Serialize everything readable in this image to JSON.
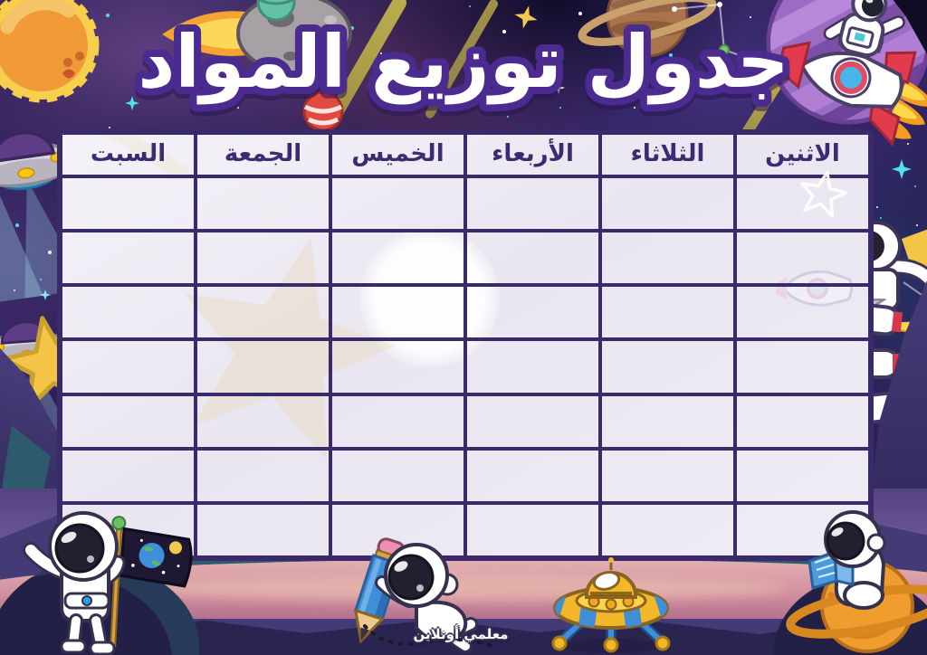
{
  "title": "جدول توزيع المواد",
  "watermark": "معلمي أونلاين",
  "table": {
    "days": [
      "الاثنين",
      "الثلاثاء",
      "الأربعاء",
      "الخميس",
      "الجمعة",
      "السبت"
    ],
    "rows": 7,
    "columns": 6,
    "cells_empty": true
  },
  "colors": {
    "grid_border": "#3a2a6a",
    "header_text": "#3d2b72",
    "cell_background": "#edeaf3",
    "title_fill": "#ffffff",
    "title_outline": "#4b2b8f",
    "space_background": "#241a4e",
    "landscape_pink": "#d08e9f",
    "landscape_purple": "#6b5598",
    "accent_cyan": "#54dff0",
    "accent_gold": "#f3c445"
  },
  "decorations": [
    "sun-icon",
    "meteor-icon",
    "teal-planet-icon",
    "saturn-icon",
    "purple-planet-icon",
    "rocket-astronaut-icon",
    "constellation-icon",
    "ufo-icon",
    "gold-star-icon",
    "white-star-icon",
    "astronaut-peeking-icon",
    "rocket-boosters-icon",
    "astronaut-flag-icon",
    "astronaut-pencil-icon",
    "ufo-lander-icon",
    "astronaut-reading-icon",
    "sparkle-icon",
    "pencil-trail-icon"
  ]
}
